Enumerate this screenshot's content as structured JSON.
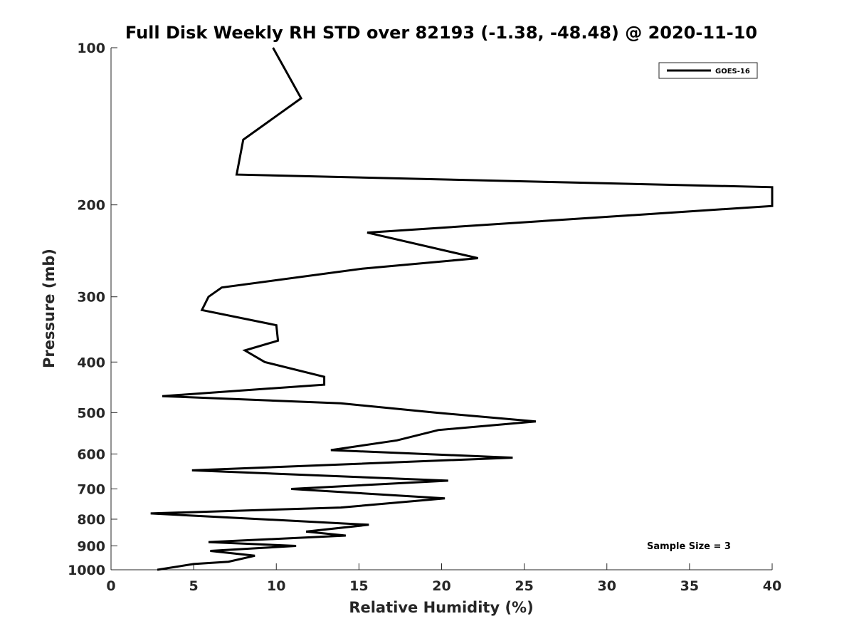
{
  "chart_data": {
    "type": "line",
    "title": "Full Disk Weekly RH STD over 82193 (-1.38, -48.48) @ 2020-11-10",
    "xlabel": "Relative Humidity (%)",
    "ylabel": "Pressure (mb)",
    "xlim": [
      0,
      40
    ],
    "ylim": [
      100,
      1000
    ],
    "yscale": "log",
    "y_reversed": true,
    "grid": false,
    "legend_position": "top-right",
    "x_ticks": [
      0,
      5,
      10,
      15,
      20,
      25,
      30,
      35,
      40
    ],
    "x_tick_labels": [
      "0",
      "5",
      "10",
      "15",
      "20",
      "25",
      "30",
      "35",
      "40"
    ],
    "y_ticks": [
      100,
      200,
      300,
      400,
      500,
      600,
      700,
      800,
      900,
      1000
    ],
    "y_tick_labels": [
      "100",
      "200",
      "300",
      "400",
      "500",
      "600",
      "700",
      "800",
      "900",
      "1000"
    ],
    "annotation": "Sample Size = 3",
    "series": [
      {
        "name": "GOES-16",
        "color": "#000000",
        "points": [
          [
            9.8,
            100
          ],
          [
            11.5,
            125
          ],
          [
            8.0,
            150
          ],
          [
            7.6,
            175
          ],
          [
            40.0,
            185
          ],
          [
            40.0,
            201
          ],
          [
            15.5,
            226
          ],
          [
            22.2,
            253
          ],
          [
            15.2,
            265
          ],
          [
            6.7,
            288
          ],
          [
            5.9,
            300
          ],
          [
            5.5,
            318
          ],
          [
            10.0,
            340
          ],
          [
            10.1,
            364
          ],
          [
            8.1,
            380
          ],
          [
            9.3,
            400
          ],
          [
            12.9,
            427
          ],
          [
            12.9,
            442
          ],
          [
            3.1,
            465
          ],
          [
            13.9,
            480
          ],
          [
            19.6,
            500
          ],
          [
            25.7,
            520
          ],
          [
            19.8,
            540
          ],
          [
            17.3,
            565
          ],
          [
            13.3,
            590
          ],
          [
            24.3,
            610
          ],
          [
            4.9,
            645
          ],
          [
            20.4,
            675
          ],
          [
            10.9,
            700
          ],
          [
            20.2,
            730
          ],
          [
            13.9,
            760
          ],
          [
            2.4,
            780
          ],
          [
            15.6,
            820
          ],
          [
            11.8,
            845
          ],
          [
            14.2,
            860
          ],
          [
            5.9,
            885
          ],
          [
            11.2,
            900
          ],
          [
            6.0,
            920
          ],
          [
            8.7,
            940
          ],
          [
            7.1,
            965
          ],
          [
            5.0,
            975
          ],
          [
            2.8,
            1000
          ]
        ]
      }
    ]
  }
}
